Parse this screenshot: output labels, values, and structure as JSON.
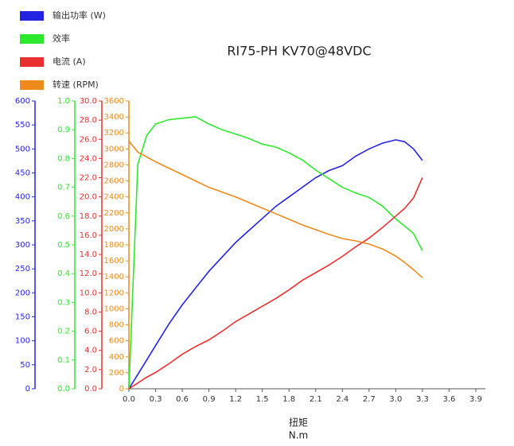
{
  "chart_data": {
    "type": "line",
    "title": "RI75-PH KV70@48VDC",
    "x_label": "扭矩",
    "x_unit": "N.m",
    "xlim": [
      0,
      3.9
    ],
    "xticks": [
      {
        "value": 0,
        "label": "0.0"
      },
      0.3,
      0.6,
      0.9,
      1.2,
      1.5,
      1.8,
      2.1,
      2.4,
      2.7,
      {
        "value": 3,
        "label": "3.0"
      },
      3.3,
      3.6,
      3.9
    ],
    "y_axes": [
      {
        "ylim": [
          0,
          600
        ],
        "yticks": [
          0,
          50,
          100,
          150,
          200,
          250,
          300,
          350,
          400,
          450,
          500,
          550,
          600
        ]
      },
      {
        "ylim": [
          0,
          1
        ],
        "yticks": [
          {
            "value": 0,
            "label": "0.0"
          },
          0.1,
          0.2,
          0.3,
          0.4,
          0.5,
          0.6,
          0.7,
          0.8,
          0.9,
          {
            "value": 1,
            "label": "1.0"
          }
        ]
      },
      {
        "ylim": [
          0,
          30
        ],
        "yticks": [
          {
            "value": 0,
            "label": "0.0"
          },
          {
            "value": 2,
            "label": "2.0"
          },
          {
            "value": 4,
            "label": "4.0"
          },
          {
            "value": 6,
            "label": "6.0"
          },
          {
            "value": 8,
            "label": "8.0"
          },
          {
            "value": 10,
            "label": "10.0"
          },
          {
            "value": 12,
            "label": "12.0"
          },
          {
            "value": 14,
            "label": "14.0"
          },
          {
            "value": 16,
            "label": "16.0"
          },
          {
            "value": 18,
            "label": "18.0"
          },
          {
            "value": 20,
            "label": "20.0"
          },
          {
            "value": 22,
            "label": "22.0"
          },
          {
            "value": 24,
            "label": "24.0"
          },
          {
            "value": 26,
            "label": "26.0"
          },
          {
            "value": 28,
            "label": "28.0"
          },
          {
            "value": 30,
            "label": "30.0"
          }
        ]
      },
      {
        "ylim": [
          0,
          3600
        ],
        "yticks": [
          0,
          200,
          400,
          600,
          800,
          1000,
          1200,
          1400,
          1600,
          1800,
          2000,
          2200,
          2400,
          2600,
          2800,
          3000,
          3200,
          3400,
          3600
        ]
      }
    ],
    "x": [
      0,
      0.1,
      0.2,
      0.3,
      0.45,
      0.6,
      0.75,
      0.9,
      1.05,
      1.2,
      1.35,
      1.5,
      1.65,
      1.8,
      1.95,
      2.1,
      2.25,
      2.4,
      2.55,
      2.7,
      2.85,
      3.0,
      3.1,
      3.2,
      3.3
    ],
    "series": [
      {
        "name": "输出功率 (W)",
        "color": "#2424e0",
        "axis": 0,
        "values": [
          0,
          30,
          60,
          90,
          135,
          175,
          210,
          245,
          275,
          305,
          330,
          355,
          380,
          400,
          420,
          440,
          455,
          465,
          485,
          500,
          512,
          519,
          515,
          500,
          476
        ]
      },
      {
        "name": "效率",
        "color": "#2ee82e",
        "axis": 1,
        "values": [
          0,
          0.78,
          0.88,
          0.92,
          0.935,
          0.94,
          0.945,
          0.92,
          0.9,
          0.885,
          0.87,
          0.85,
          0.84,
          0.82,
          0.795,
          0.76,
          0.73,
          0.7,
          0.68,
          0.665,
          0.635,
          0.59,
          0.565,
          0.54,
          0.48
        ]
      },
      {
        "name": "电流 (A)",
        "color": "#e83030",
        "axis": 2,
        "values": [
          0,
          0.6,
          1.2,
          1.7,
          2.6,
          3.6,
          4.4,
          5.1,
          6.0,
          7.0,
          7.8,
          8.6,
          9.4,
          10.3,
          11.3,
          12.1,
          12.9,
          13.8,
          14.8,
          15.7,
          16.8,
          18.0,
          18.8,
          19.9,
          22.0
        ]
      },
      {
        "name": "转速 (RPM)",
        "color": "#ee8a1c",
        "axis": 3,
        "values": [
          3100,
          2960,
          2900,
          2840,
          2760,
          2680,
          2600,
          2520,
          2460,
          2400,
          2330,
          2260,
          2190,
          2120,
          2050,
          1990,
          1930,
          1880,
          1850,
          1810,
          1750,
          1660,
          1580,
          1490,
          1390
        ]
      }
    ]
  }
}
